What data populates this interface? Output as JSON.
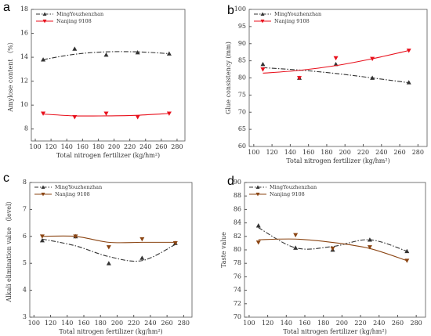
{
  "chart_data": [
    {
      "type": "line",
      "label": "a",
      "y_label": "Amylose content （%）",
      "x_label": "Total nitrogen fertilizer (kg/hm²)",
      "x": [
        110,
        150,
        190,
        230,
        270
      ],
      "xlim": [
        95,
        290
      ],
      "xticks": [
        100,
        120,
        140,
        160,
        180,
        200,
        220,
        240,
        260,
        280
      ],
      "ylim": [
        7,
        18
      ],
      "yticks": [
        8,
        10,
        12,
        14,
        16,
        18
      ],
      "legend": "upper-left",
      "series": [
        {
          "name": "MingYouzhenzhan",
          "color": "#333333",
          "marker": "up",
          "line": "dashdot",
          "values": [
            13.8,
            14.7,
            14.2,
            14.4,
            14.3
          ],
          "fit": [
            13.8,
            14.25,
            14.45,
            14.45,
            14.3
          ]
        },
        {
          "name": "Nanjing 9108",
          "color": "#e8101c",
          "marker": "down",
          "line": "solid",
          "values": [
            9.3,
            9.0,
            9.3,
            9.0,
            9.3
          ],
          "fit": [
            9.25,
            9.1,
            9.1,
            9.15,
            9.3
          ]
        }
      ]
    },
    {
      "type": "line",
      "label": "b",
      "y_label": "Glue consistency (mm)",
      "x_label": "Total nitrogen fertilizer (kg/hm²)",
      "x": [
        110,
        150,
        190,
        230,
        270
      ],
      "xlim": [
        95,
        290
      ],
      "xticks": [
        100,
        120,
        140,
        160,
        180,
        200,
        220,
        240,
        260,
        280
      ],
      "ylim": [
        60,
        100
      ],
      "yticks": [
        60,
        65,
        70,
        75,
        80,
        85,
        90,
        95,
        100
      ],
      "legend": "upper-left",
      "series": [
        {
          "name": "MingYouzhenzhan",
          "color": "#333333",
          "marker": "up",
          "line": "dashdot",
          "values": [
            84,
            80,
            84,
            80,
            78.7
          ],
          "fit": [
            83,
            82.3,
            81.3,
            80,
            78.6
          ]
        },
        {
          "name": "Nanjing 9108",
          "color": "#e8101c",
          "marker": "down",
          "line": "solid",
          "values": [
            82.5,
            80,
            85.8,
            85.6,
            88
          ],
          "fit": [
            81.4,
            82.2,
            83.6,
            85.6,
            88
          ]
        }
      ]
    },
    {
      "type": "line",
      "label": "c",
      "y_label": "Alkali elimination value （level）",
      "x_label": "Total nitrogen fertilizer (kg/hm²)",
      "x": [
        110,
        150,
        190,
        230,
        270
      ],
      "xlim": [
        95,
        290
      ],
      "xticks": [
        100,
        120,
        140,
        160,
        180,
        200,
        220,
        240,
        260,
        280
      ],
      "ylim": [
        3,
        8
      ],
      "yticks": [
        3,
        4,
        5,
        6,
        7,
        8
      ],
      "legend": "upper-left",
      "series": [
        {
          "name": "MingYouzhenzhan",
          "color": "#333333",
          "marker": "up",
          "line": "dashdot",
          "values": [
            5.85,
            6.0,
            5.0,
            5.2,
            5.75
          ],
          "fit": [
            5.9,
            5.65,
            5.25,
            5.1,
            5.7
          ]
        },
        {
          "name": "Nanjing 9108",
          "color": "#8b4513",
          "marker": "down",
          "line": "solid",
          "values": [
            6.0,
            6.0,
            5.6,
            5.9,
            5.75
          ],
          "fit": [
            6.0,
            6.0,
            5.78,
            5.78,
            5.78
          ]
        }
      ]
    },
    {
      "type": "line",
      "label": "d",
      "y_label": "Taste value",
      "x_label": "Total nitrogen fertilizer (kg/hm²)",
      "x": [
        110,
        150,
        190,
        230,
        270
      ],
      "xlim": [
        95,
        290
      ],
      "xticks": [
        100,
        120,
        140,
        160,
        180,
        200,
        220,
        240,
        260,
        280
      ],
      "ylim": [
        70,
        90
      ],
      "yticks": [
        70,
        72,
        74,
        76,
        78,
        80,
        82,
        84,
        86,
        88,
        90
      ],
      "legend": "upper-left",
      "series": [
        {
          "name": "MingYouzhenzhan",
          "color": "#333333",
          "marker": "up",
          "line": "dashdot",
          "values": [
            83.6,
            80.3,
            80.0,
            81.5,
            79.8
          ],
          "fit": [
            83.3,
            80.3,
            80.5,
            81.5,
            79.8
          ]
        },
        {
          "name": "Nanjing 9108",
          "color": "#8b4513",
          "marker": "down",
          "line": "solid",
          "values": [
            81.1,
            82.2,
            80.2,
            80.4,
            78.4
          ],
          "fit": [
            81.5,
            81.6,
            81.1,
            80.2,
            78.4
          ]
        }
      ]
    }
  ]
}
